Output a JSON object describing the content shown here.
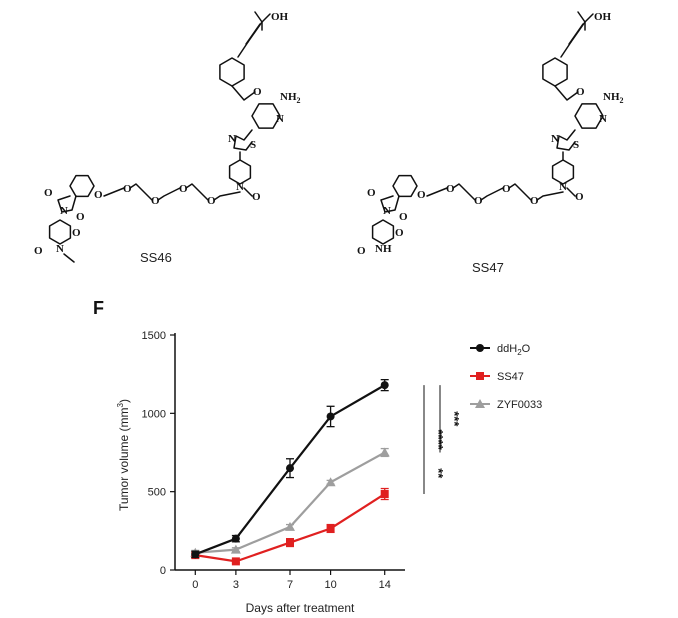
{
  "figure": {
    "compound_left_label": "SS46",
    "compound_right_label": "SS47",
    "panel_letter": "F",
    "atoms": {
      "oh": "OH",
      "o": "O",
      "n": "N",
      "s": "S",
      "nh2_main": "NH",
      "nh2_sub": "2",
      "nh": "NH"
    }
  },
  "chart_data": {
    "type": "line",
    "title": "",
    "xlabel": "Days after treatment",
    "ylabel_main": "Tumor volume (mm",
    "ylabel_sup": "3",
    "ylabel_end": ")",
    "x": [
      0,
      3,
      7,
      10,
      14
    ],
    "ylim": [
      0,
      1500
    ],
    "yticks": [
      0,
      500,
      1000,
      1500
    ],
    "legend_placement": "right",
    "series": [
      {
        "name_main": "ddH",
        "name_sub": "2",
        "name_end": "O",
        "color": "#111111",
        "marker": "circle",
        "values": [
          100,
          200,
          650,
          980,
          1180
        ],
        "errors": [
          20,
          20,
          60,
          65,
          35
        ]
      },
      {
        "name_main": "SS47",
        "name_sub": "",
        "name_end": "",
        "color": "#e02020",
        "marker": "square",
        "values": [
          95,
          55,
          175,
          265,
          485
        ],
        "errors": [
          15,
          10,
          25,
          25,
          35
        ]
      },
      {
        "name_main": "ZYF0033",
        "name_sub": "",
        "name_end": "",
        "color": "#9e9e9e",
        "marker": "triangle",
        "values": [
          110,
          130,
          275,
          560,
          750
        ],
        "errors": [
          15,
          12,
          15,
          12,
          25
        ]
      }
    ],
    "significance": [
      {
        "label": "***",
        "from_series": 0,
        "to_series": 2
      },
      {
        "label": "****",
        "from_series": 0,
        "to_series": 1
      },
      {
        "label": "**",
        "from_series": 2,
        "to_series": 1
      }
    ]
  }
}
